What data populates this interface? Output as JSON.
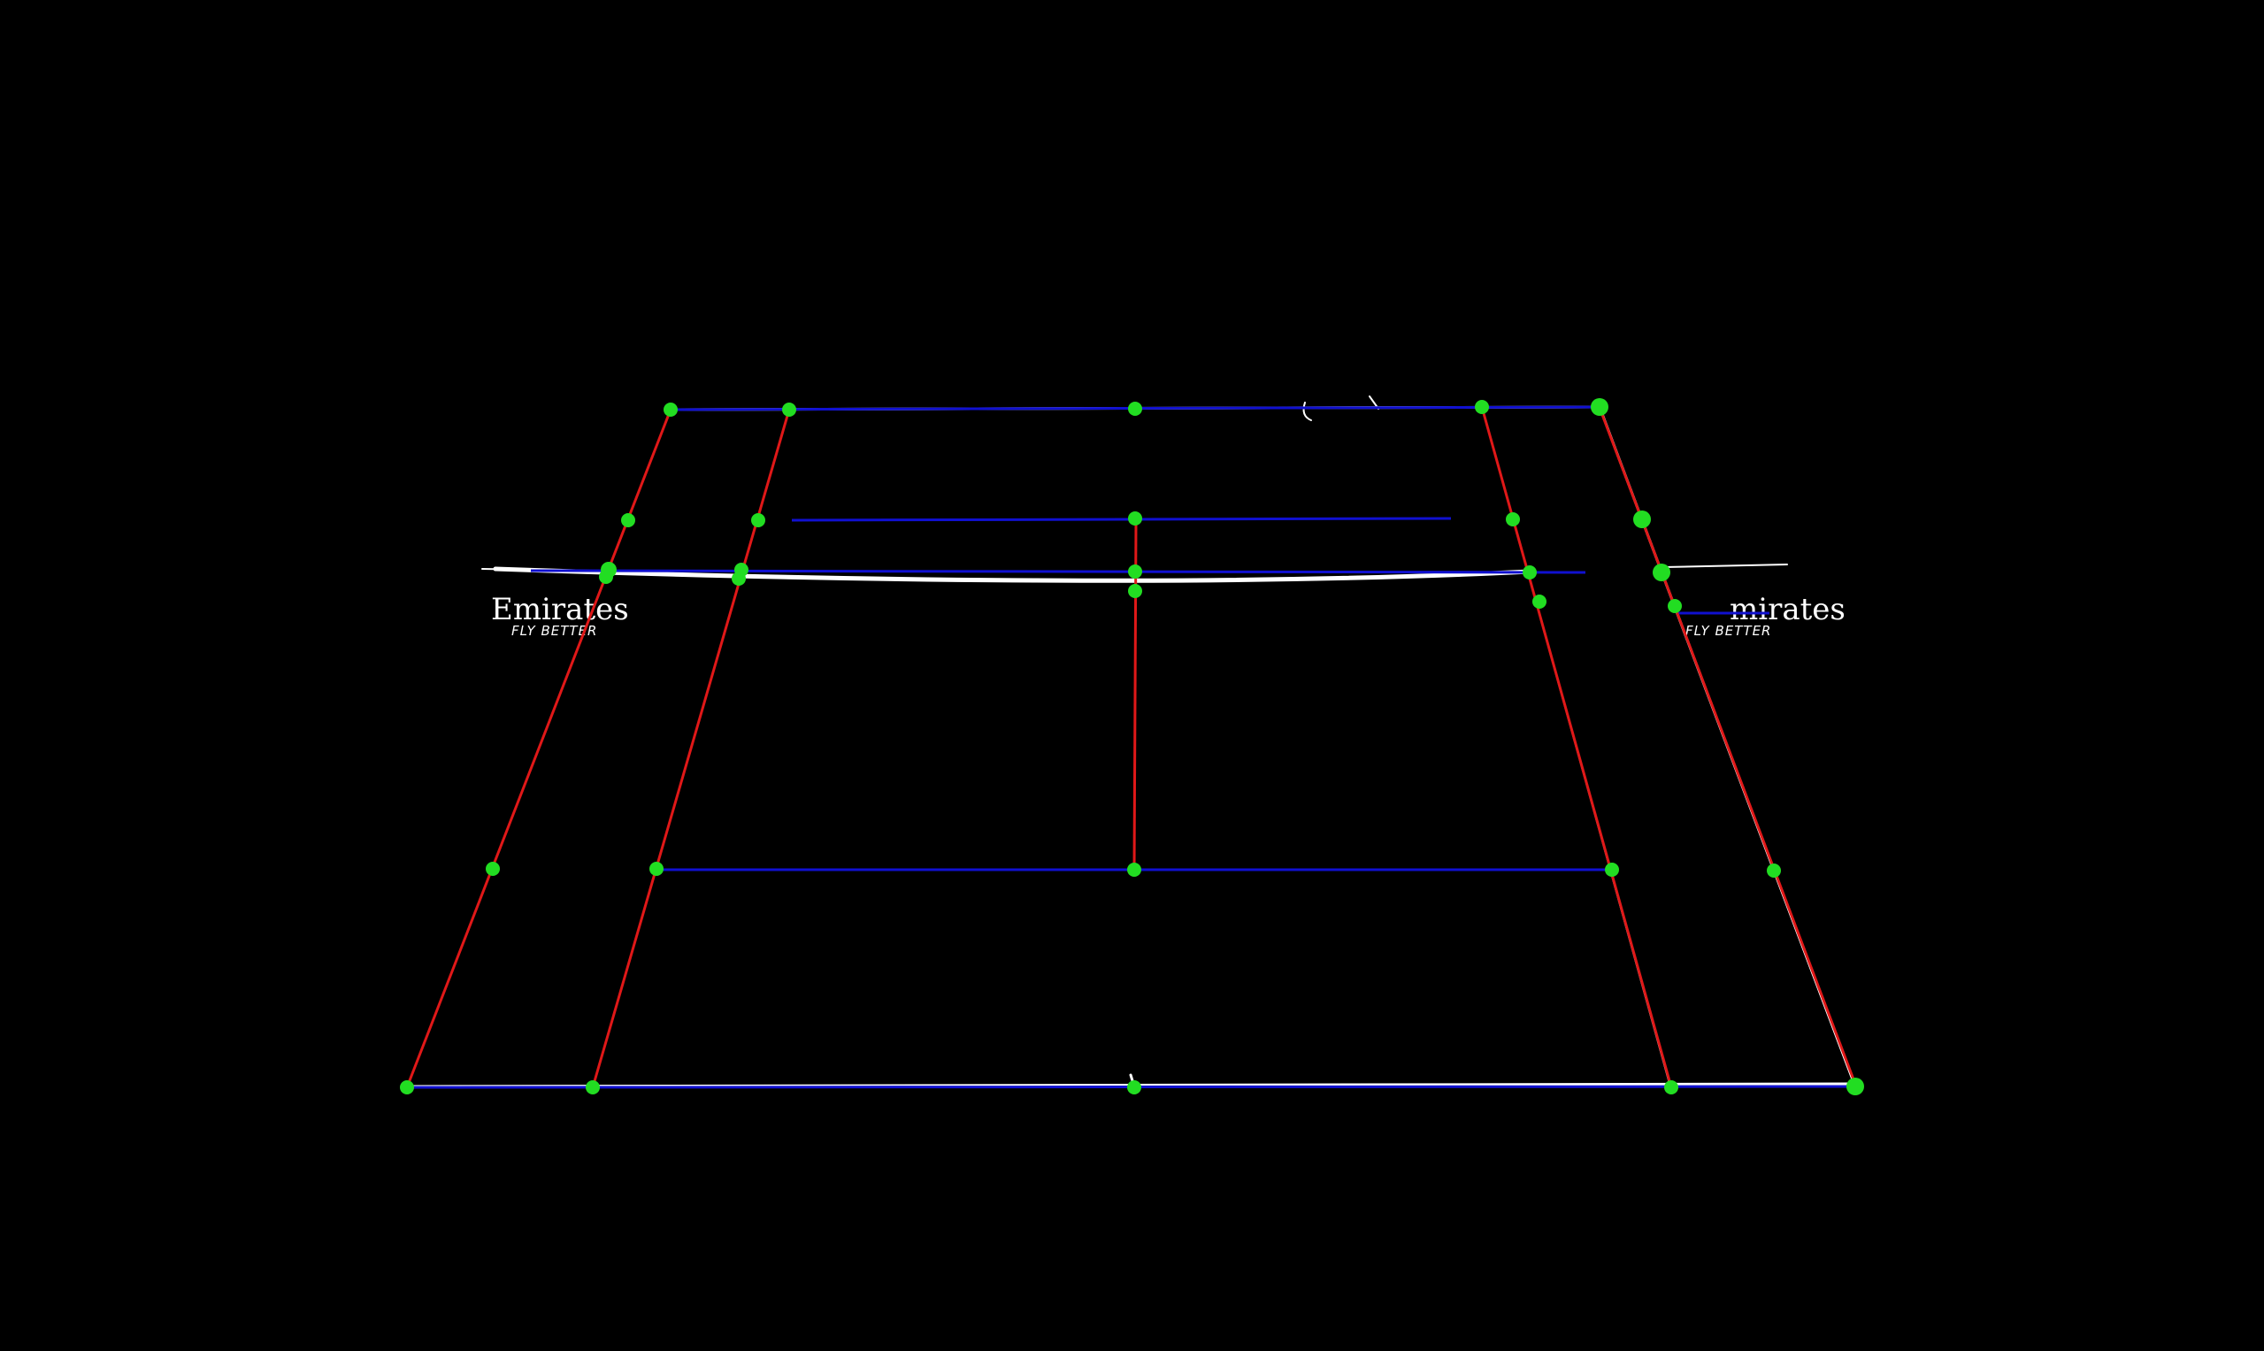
{
  "colors": {
    "background": "#000000",
    "edge_white": "#ffffff",
    "horizontal_line": "#1010d0",
    "vertical_line": "#e01818",
    "keypoint": "#22dd22"
  },
  "signage": {
    "left_brand": "Emirates",
    "left_sub": "FLY BETTER",
    "right_brand": "mirates",
    "right_sub": "FLY BETTER"
  }
}
